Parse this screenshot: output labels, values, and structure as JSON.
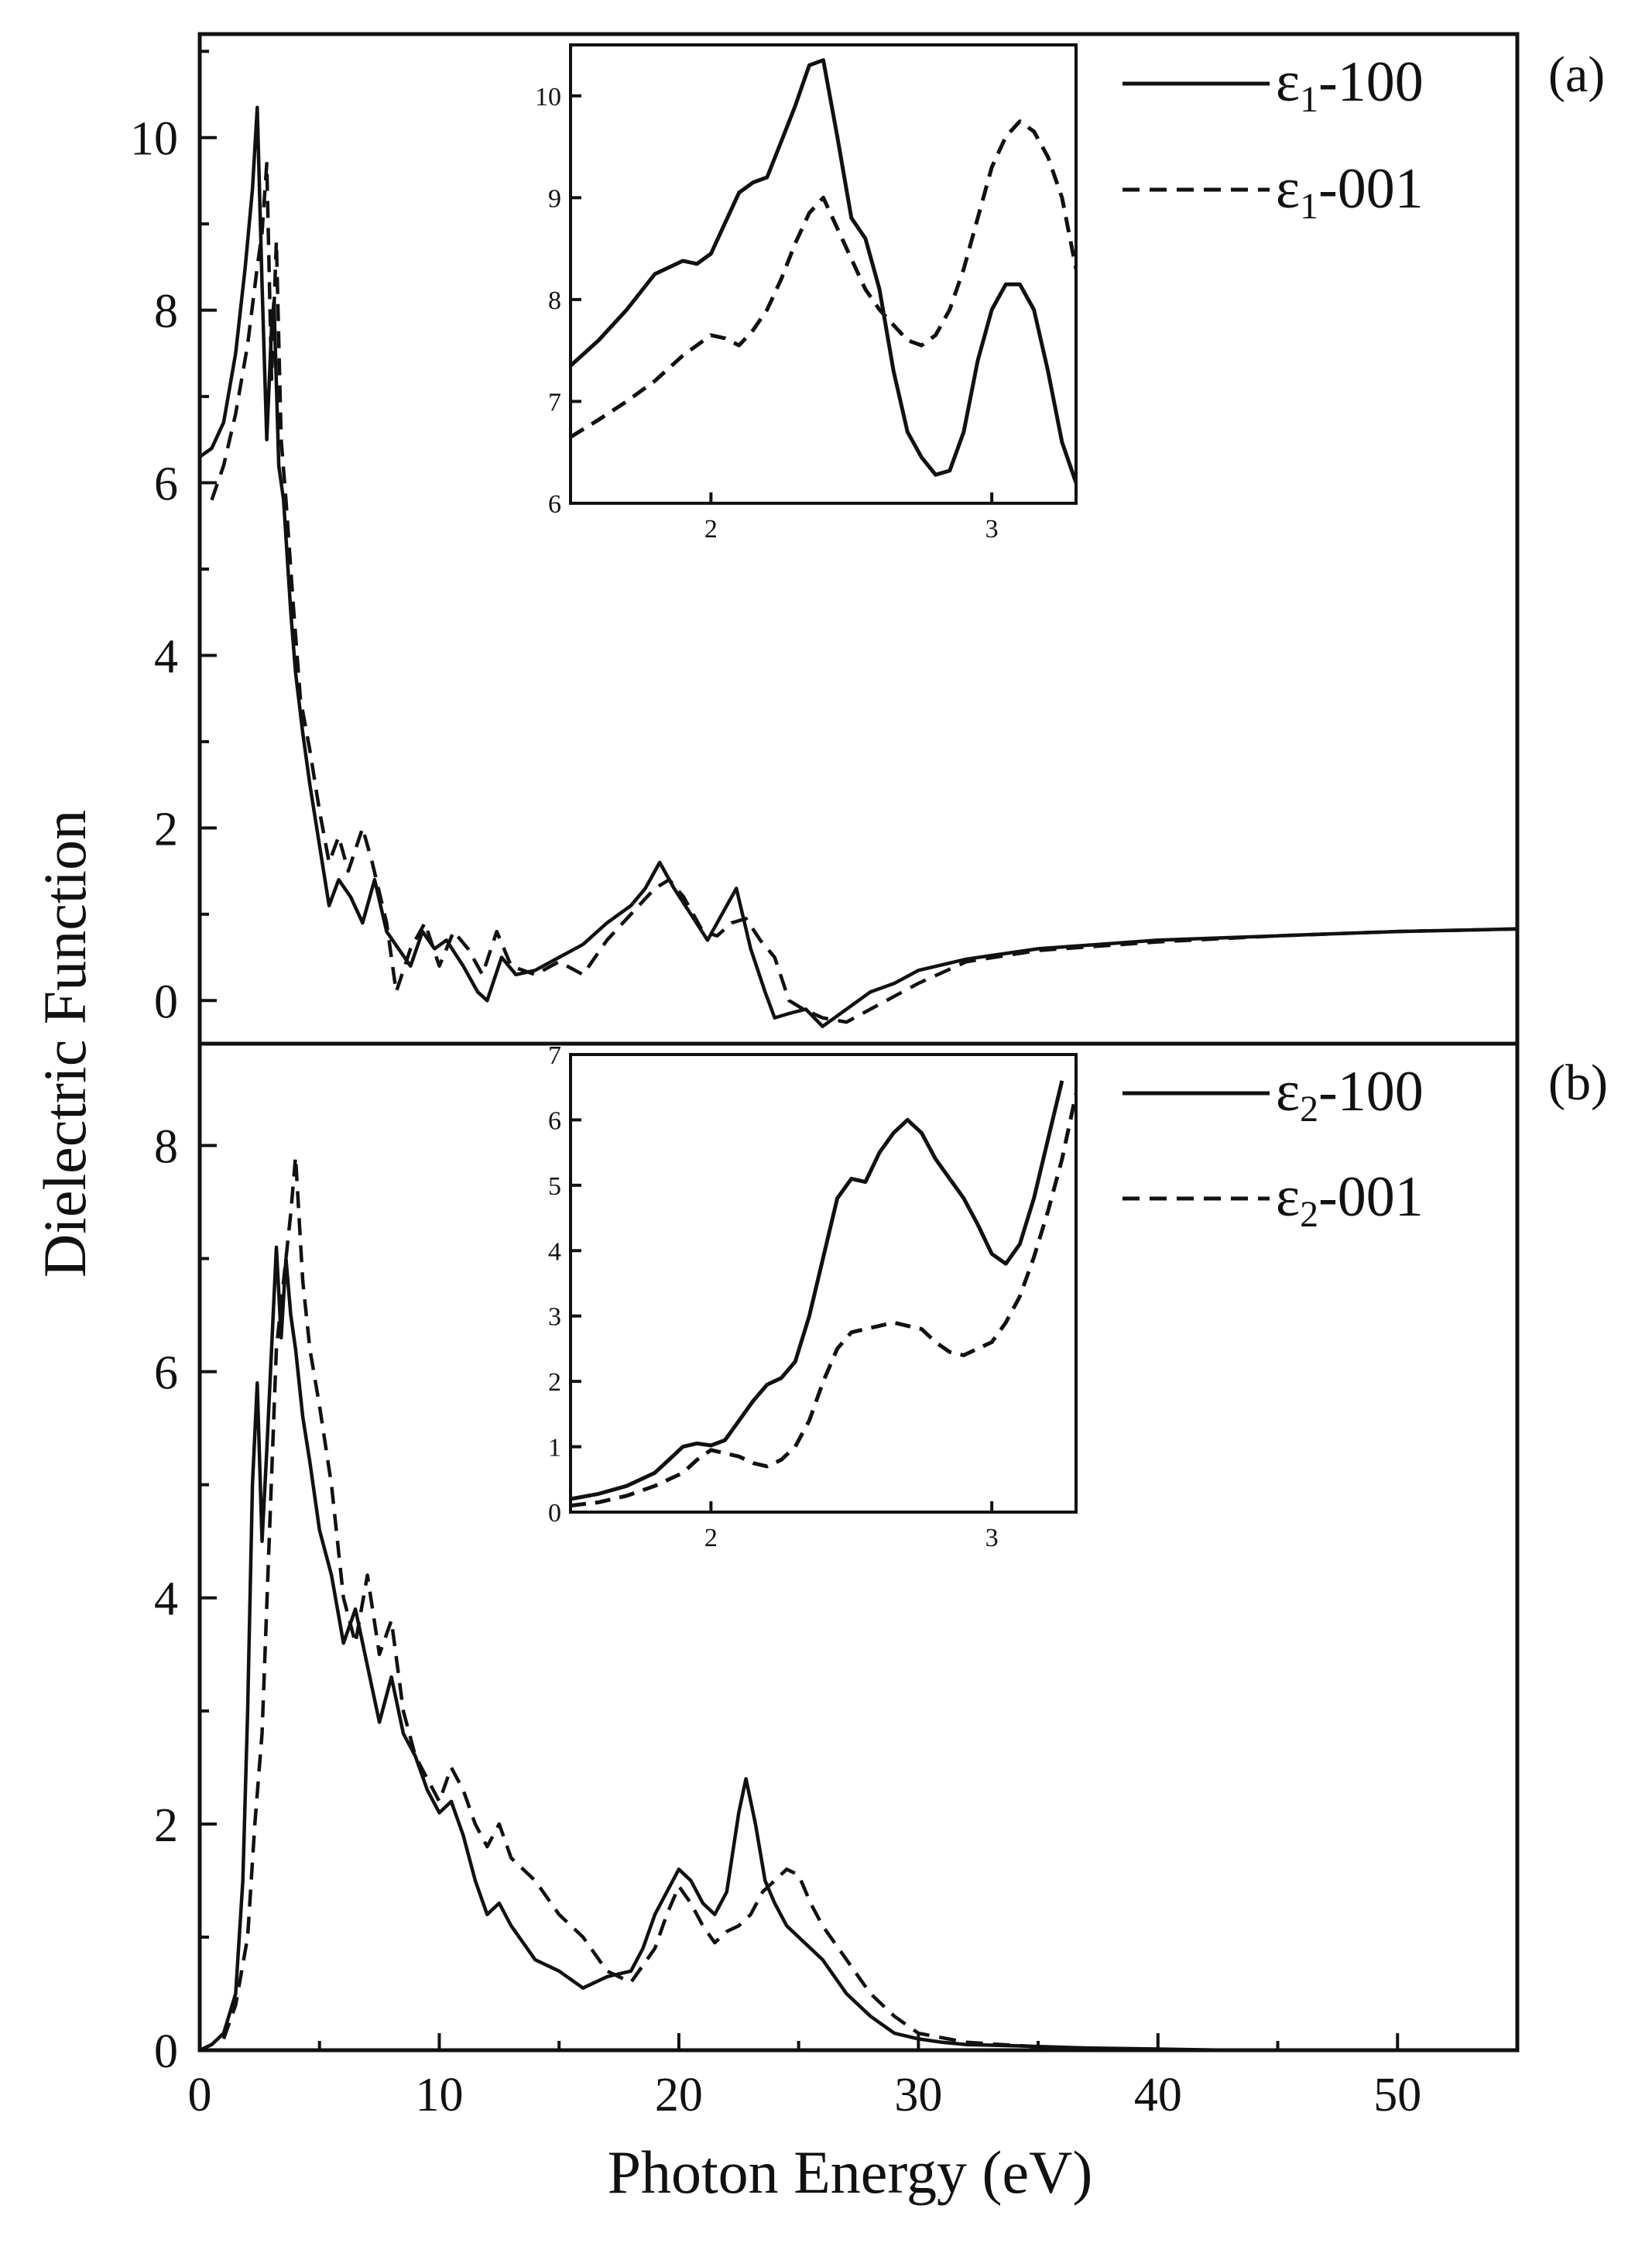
{
  "chart_data": {
    "type": "line",
    "xlabel": "Photon Energy (eV)",
    "ylabel": "Dielectric Function",
    "xlim": [
      0,
      55
    ],
    "xticks": [
      0,
      10,
      20,
      30,
      40,
      50
    ],
    "panels": [
      {
        "id": "a",
        "panel_label": "(a)",
        "ylim": [
          -0.5,
          11.2
        ],
        "yticks": [
          0,
          2,
          4,
          6,
          8,
          10
        ],
        "legend_position": "top-right",
        "series": [
          {
            "name": "ε1-100",
            "legend_symbol": "ε",
            "legend_subscript": "1",
            "legend_suffix": "-100",
            "style": "solid",
            "x": [
              0,
              0.5,
              1.0,
              1.5,
              1.9,
              2.2,
              2.4,
              2.6,
              2.8,
              3.0,
              3.1,
              3.3,
              3.5,
              3.8,
              4.0,
              4.3,
              4.6,
              5.0,
              5.4,
              5.8,
              6.3,
              6.8,
              7.3,
              7.8,
              8.3,
              8.8,
              9.3,
              9.8,
              10.3,
              11.0,
              11.6,
              12.0,
              12.6,
              13.2,
              14.0,
              15.0,
              16.0,
              17.0,
              18.0,
              18.6,
              19.2,
              19.8,
              20.5,
              21.2,
              21.8,
              22.4,
              23.0,
              23.6,
              24.0,
              24.6,
              25.3,
              26.0,
              27.0,
              28.0,
              29.0,
              30.0,
              32.0,
              35.0,
              40.0,
              45.0,
              50.0,
              55.0
            ],
            "y": [
              6.3,
              6.4,
              6.7,
              7.5,
              8.5,
              9.4,
              10.35,
              8.3,
              6.5,
              7.8,
              8.1,
              6.2,
              5.8,
              4.5,
              3.8,
              3.1,
              2.5,
              1.8,
              1.1,
              1.4,
              1.2,
              0.9,
              1.4,
              0.8,
              0.6,
              0.4,
              0.8,
              0.6,
              0.7,
              0.4,
              0.1,
              0.0,
              0.5,
              0.3,
              0.35,
              0.5,
              0.65,
              0.9,
              1.1,
              1.3,
              1.6,
              1.3,
              1.0,
              0.7,
              1.0,
              1.3,
              0.6,
              0.1,
              -0.2,
              -0.15,
              -0.1,
              -0.3,
              -0.1,
              0.1,
              0.2,
              0.35,
              0.48,
              0.6,
              0.7,
              0.75,
              0.8,
              0.83
            ]
          },
          {
            "name": "ε1-001",
            "legend_symbol": "ε",
            "legend_subscript": "1",
            "legend_suffix": "-001",
            "style": "dashed",
            "x": [
              0.5,
              1.0,
              1.5,
              2.0,
              2.4,
              2.6,
              2.8,
              3.0,
              3.2,
              3.4,
              3.6,
              3.9,
              4.2,
              4.6,
              5.0,
              5.4,
              5.8,
              6.2,
              6.8,
              7.2,
              7.8,
              8.2,
              8.8,
              9.4,
              10.0,
              10.6,
              11.2,
              11.8,
              12.4,
              13.0,
              14.0,
              15.0,
              16.0,
              17.0,
              18.0,
              19.0,
              19.6,
              20.2,
              21.0,
              21.6,
              22.2,
              22.8,
              23.4,
              24.0,
              24.6,
              25.2,
              26.0,
              27.0,
              28.0,
              29.0,
              30.0,
              32.0,
              35.0,
              40.0,
              45.0,
              50.0,
              55.0
            ],
            "y": [
              5.8,
              6.2,
              6.8,
              7.6,
              8.5,
              8.9,
              9.7,
              7.2,
              8.8,
              6.5,
              5.8,
              4.6,
              3.5,
              2.9,
              2.2,
              1.6,
              1.9,
              1.5,
              2.0,
              1.6,
              0.9,
              0.1,
              0.6,
              0.9,
              0.4,
              0.8,
              0.6,
              0.3,
              0.8,
              0.4,
              0.3,
              0.45,
              0.3,
              0.7,
              1.0,
              1.3,
              1.4,
              1.2,
              0.8,
              0.75,
              0.9,
              0.95,
              0.7,
              0.5,
              0.0,
              -0.1,
              -0.2,
              -0.25,
              -0.1,
              0.05,
              0.2,
              0.45,
              0.58,
              0.68,
              0.75,
              0.8,
              0.83
            ]
          }
        ],
        "inset": {
          "xlim": [
            1.5,
            3.3
          ],
          "ylim": [
            6,
            10.5
          ],
          "xticks": [
            2,
            3
          ],
          "yticks": [
            6,
            7,
            8,
            9,
            10
          ],
          "series": [
            {
              "name": "ε1-100",
              "style": "solid",
              "x": [
                1.5,
                1.6,
                1.7,
                1.8,
                1.9,
                1.95,
                2.0,
                2.05,
                2.1,
                2.15,
                2.2,
                2.25,
                2.3,
                2.35,
                2.4,
                2.45,
                2.5,
                2.55,
                2.6,
                2.65,
                2.7,
                2.75,
                2.8,
                2.85,
                2.9,
                2.95,
                3.0,
                3.05,
                3.1,
                3.15,
                3.2,
                3.25,
                3.3
              ],
              "y": [
                7.35,
                7.6,
                7.9,
                8.25,
                8.38,
                8.35,
                8.45,
                8.75,
                9.05,
                9.15,
                9.2,
                9.55,
                9.9,
                10.3,
                10.35,
                9.6,
                8.8,
                8.6,
                8.1,
                7.3,
                6.7,
                6.45,
                6.28,
                6.32,
                6.7,
                7.4,
                7.9,
                8.15,
                8.15,
                7.9,
                7.3,
                6.6,
                6.2
              ]
            },
            {
              "name": "ε1-001",
              "style": "dashed",
              "x": [
                1.5,
                1.6,
                1.7,
                1.8,
                1.9,
                2.0,
                2.05,
                2.1,
                2.15,
                2.2,
                2.25,
                2.3,
                2.35,
                2.4,
                2.45,
                2.5,
                2.55,
                2.6,
                2.65,
                2.7,
                2.75,
                2.8,
                2.85,
                2.9,
                2.95,
                3.0,
                3.05,
                3.1,
                3.15,
                3.2,
                3.25,
                3.3
              ],
              "y": [
                6.65,
                6.82,
                7.0,
                7.2,
                7.45,
                7.65,
                7.62,
                7.55,
                7.7,
                7.9,
                8.2,
                8.55,
                8.85,
                9.0,
                8.7,
                8.4,
                8.1,
                7.9,
                7.75,
                7.6,
                7.55,
                7.65,
                7.9,
                8.3,
                8.8,
                9.3,
                9.6,
                9.75,
                9.65,
                9.4,
                9.0,
                8.3
              ]
            }
          ]
        }
      },
      {
        "id": "b",
        "panel_label": "(b)",
        "ylim": [
          0,
          8.9
        ],
        "yticks": [
          0,
          2,
          4,
          6,
          8
        ],
        "legend_position": "top-right",
        "series": [
          {
            "name": "ε2-100",
            "legend_symbol": "ε",
            "legend_subscript": "2",
            "legend_suffix": "-100",
            "style": "solid",
            "x": [
              0,
              0.5,
              1.0,
              1.5,
              1.8,
              2.0,
              2.2,
              2.4,
              2.6,
              2.8,
              3.0,
              3.2,
              3.4,
              3.6,
              3.8,
              4.0,
              4.3,
              4.6,
              5.0,
              5.5,
              6.0,
              6.5,
              7.0,
              7.5,
              8.0,
              8.5,
              9.0,
              9.5,
              10.0,
              10.5,
              11.0,
              11.5,
              12.0,
              12.5,
              13.0,
              13.5,
              14.0,
              15.0,
              16.0,
              17.0,
              18.0,
              18.5,
              19.0,
              19.5,
              20.0,
              20.5,
              21.0,
              21.5,
              22.0,
              22.5,
              22.8,
              23.2,
              23.6,
              24.0,
              24.5,
              25.0,
              25.5,
              26.0,
              27.0,
              28.0,
              29.0,
              30.0,
              31.0,
              32.0,
              34.0,
              37.0,
              40.0,
              43.0
            ],
            "y": [
              0,
              0.05,
              0.15,
              0.5,
              1.5,
              3.0,
              5.0,
              5.9,
              4.5,
              5.3,
              6.2,
              7.1,
              6.3,
              7.0,
              6.5,
              6.2,
              5.6,
              5.2,
              4.6,
              4.2,
              3.6,
              3.9,
              3.4,
              2.9,
              3.3,
              2.8,
              2.6,
              2.3,
              2.1,
              2.2,
              1.9,
              1.5,
              1.2,
              1.3,
              1.1,
              0.95,
              0.8,
              0.7,
              0.55,
              0.65,
              0.7,
              0.9,
              1.2,
              1.4,
              1.6,
              1.5,
              1.3,
              1.2,
              1.4,
              2.1,
              2.4,
              2.0,
              1.5,
              1.3,
              1.1,
              1.0,
              0.9,
              0.8,
              0.5,
              0.3,
              0.15,
              0.1,
              0.07,
              0.05,
              0.04,
              0.02,
              0.01,
              0.0
            ]
          },
          {
            "name": "ε2-001",
            "legend_symbol": "ε",
            "legend_subscript": "2",
            "legend_suffix": "-001",
            "style": "dashed",
            "x": [
              1.0,
              1.5,
              2.0,
              2.3,
              2.6,
              2.9,
              3.2,
              3.5,
              3.8,
              4.0,
              4.3,
              4.6,
              5.0,
              5.5,
              6.0,
              6.5,
              7.0,
              7.5,
              8.0,
              8.5,
              9.0,
              9.5,
              10.0,
              10.5,
              11.0,
              11.5,
              12.0,
              12.5,
              13.0,
              14.0,
              15.0,
              16.0,
              17.0,
              18.0,
              19.0,
              19.5,
              20.0,
              20.5,
              21.0,
              21.5,
              22.0,
              22.5,
              23.0,
              23.5,
              24.0,
              24.5,
              25.0,
              25.5,
              26.0,
              27.0,
              28.0,
              29.0,
              30.0,
              32.0,
              35.0,
              40.0
            ],
            "y": [
              0.1,
              0.4,
              1.0,
              2.0,
              2.8,
              4.5,
              6.2,
              6.8,
              7.4,
              7.9,
              6.8,
              6.2,
              5.7,
              5.0,
              4.0,
              3.6,
              4.2,
              3.5,
              3.8,
              3.0,
              2.6,
              2.4,
              2.2,
              2.5,
              2.3,
              2.0,
              1.8,
              2.0,
              1.7,
              1.5,
              1.2,
              1.0,
              0.7,
              0.6,
              0.9,
              1.2,
              1.45,
              1.3,
              1.1,
              0.95,
              1.05,
              1.1,
              1.2,
              1.4,
              1.5,
              1.6,
              1.55,
              1.3,
              1.1,
              0.8,
              0.5,
              0.3,
              0.15,
              0.07,
              0.03,
              0.0
            ]
          }
        ],
        "inset": {
          "xlim": [
            1.5,
            3.3
          ],
          "ylim": [
            0,
            7
          ],
          "xticks": [
            2,
            3
          ],
          "yticks": [
            0,
            1,
            2,
            3,
            4,
            5,
            6,
            7
          ],
          "series": [
            {
              "name": "ε2-100",
              "style": "solid",
              "x": [
                1.5,
                1.6,
                1.7,
                1.8,
                1.85,
                1.9,
                1.95,
                2.0,
                2.05,
                2.1,
                2.15,
                2.2,
                2.25,
                2.3,
                2.35,
                2.4,
                2.45,
                2.5,
                2.55,
                2.6,
                2.65,
                2.7,
                2.75,
                2.8,
                2.85,
                2.9,
                2.95,
                3.0,
                3.05,
                3.1,
                3.15,
                3.2,
                3.25
              ],
              "y": [
                0.2,
                0.28,
                0.4,
                0.6,
                0.8,
                1.0,
                1.05,
                1.02,
                1.1,
                1.4,
                1.7,
                1.95,
                2.05,
                2.3,
                3.0,
                3.9,
                4.8,
                5.1,
                5.05,
                5.5,
                5.8,
                6.0,
                5.8,
                5.4,
                5.1,
                4.8,
                4.4,
                3.95,
                3.8,
                4.1,
                4.8,
                5.7,
                6.6
              ]
            },
            {
              "name": "ε2-001",
              "style": "dashed",
              "x": [
                1.5,
                1.6,
                1.7,
                1.8,
                1.9,
                1.95,
                2.0,
                2.05,
                2.1,
                2.15,
                2.2,
                2.25,
                2.3,
                2.35,
                2.4,
                2.45,
                2.5,
                2.55,
                2.6,
                2.65,
                2.7,
                2.75,
                2.8,
                2.85,
                2.9,
                2.95,
                3.0,
                3.05,
                3.1,
                3.15,
                3.2,
                3.25,
                3.3
              ],
              "y": [
                0.1,
                0.15,
                0.25,
                0.4,
                0.6,
                0.8,
                0.95,
                0.9,
                0.85,
                0.75,
                0.7,
                0.8,
                1.0,
                1.4,
                2.0,
                2.5,
                2.75,
                2.8,
                2.85,
                2.9,
                2.85,
                2.8,
                2.6,
                2.45,
                2.4,
                2.5,
                2.6,
                2.9,
                3.3,
                3.9,
                4.6,
                5.4,
                6.4
              ]
            }
          ]
        }
      }
    ]
  }
}
